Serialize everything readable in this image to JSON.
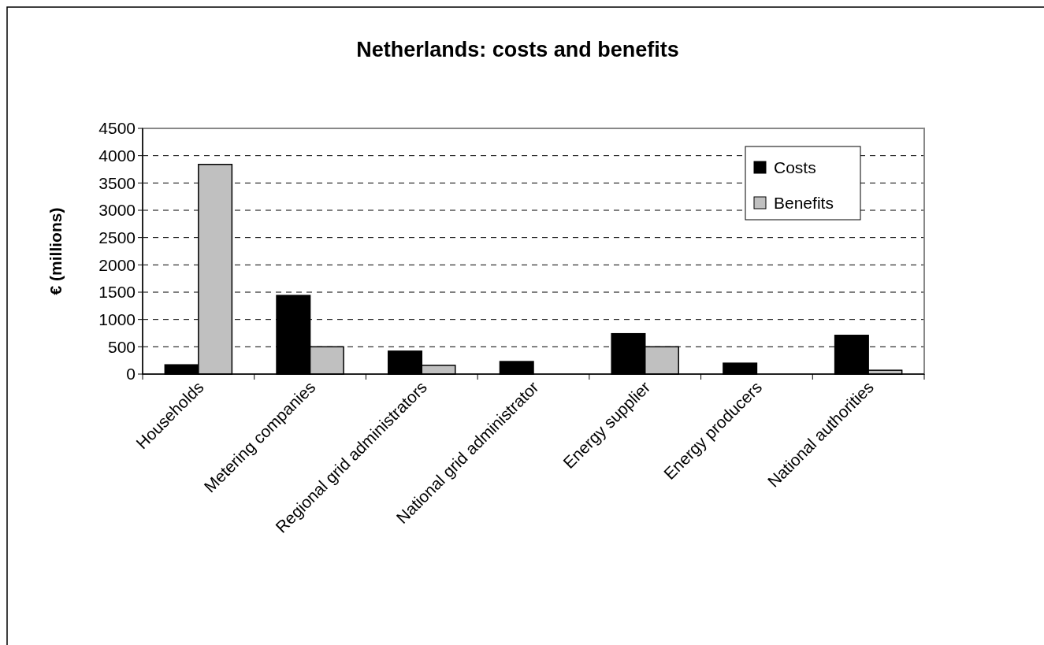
{
  "chart_data": {
    "type": "bar",
    "title": "Netherlands: costs and benefits",
    "ylabel": "€ (millions)",
    "categories": [
      "Households",
      "Metering companies",
      "Regional grid administrators",
      "National grid administrator",
      "Energy supplier",
      "Energy producers",
      "National authorities"
    ],
    "series": [
      {
        "name": "Costs",
        "color": "#000000",
        "values": [
          170,
          1440,
          420,
          230,
          740,
          200,
          710
        ]
      },
      {
        "name": "Benefits",
        "color": "#c0c0c0",
        "values": [
          3840,
          500,
          160,
          0,
          500,
          0,
          70
        ]
      }
    ],
    "ylim": [
      0,
      4500
    ],
    "yticks": [
      0,
      500,
      1000,
      1500,
      2000,
      2500,
      3000,
      3500,
      4000,
      4500
    ],
    "grid": "y",
    "legend": "top right"
  }
}
